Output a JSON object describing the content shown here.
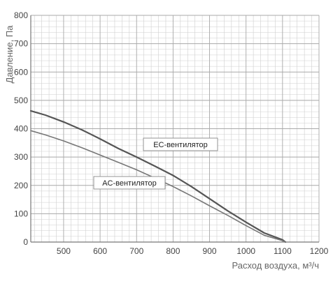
{
  "chart_data": {
    "type": "line",
    "title": "",
    "xlabel": "Расход воздуха, м³/ч",
    "ylabel": "Давление, Па",
    "xlim": [
      410,
      1200
    ],
    "ylim": [
      0,
      800
    ],
    "x_ticks": [
      500,
      600,
      700,
      800,
      900,
      1000,
      1100,
      1200
    ],
    "x_tick_labels": [
      "500",
      "600",
      "700",
      "800",
      "900",
      "1000",
      "1100",
      "1200"
    ],
    "y_ticks": [
      0,
      100,
      200,
      300,
      400,
      500,
      600,
      700,
      800
    ],
    "y_tick_labels": [
      "0",
      "100",
      "200",
      "300",
      "400",
      "500",
      "600",
      "700",
      "800"
    ],
    "grid": true,
    "series": [
      {
        "name": "EC-вентилятор",
        "color": "#555555",
        "x": [
          410,
          450,
          500,
          550,
          600,
          650,
          700,
          750,
          800,
          850,
          900,
          950,
          1000,
          1050,
          1100,
          1108
        ],
        "y": [
          463,
          448,
          424,
          396,
          364,
          330,
          300,
          268,
          235,
          196,
          153,
          110,
          70,
          32,
          8,
          0
        ]
      },
      {
        "name": "AC-вентилятор",
        "color": "#777777",
        "x": [
          410,
          450,
          500,
          550,
          600,
          650,
          700,
          750,
          800,
          850,
          900,
          950,
          1000,
          1050,
          1100,
          1108
        ],
        "y": [
          393,
          378,
          357,
          333,
          307,
          281,
          255,
          226,
          196,
          163,
          128,
          94,
          58,
          24,
          5,
          0
        ]
      }
    ]
  }
}
